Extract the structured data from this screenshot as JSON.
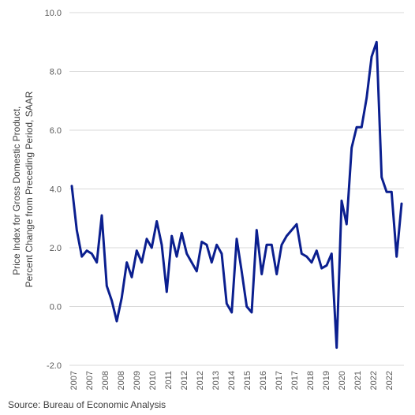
{
  "chart_data": {
    "type": "line",
    "title": "",
    "xlabel": "",
    "ylabel_lines": [
      "Price Index for Gross Domestic Product,",
      "Percent Change from Preceding Period, SAAR"
    ],
    "ylim": [
      -2.0,
      10.0
    ],
    "yticks": [
      "10.0",
      "8.0",
      "6.0",
      "4.0",
      "2.0",
      "0.0",
      "-2.0"
    ],
    "ytick_values": [
      10,
      8,
      6,
      4,
      2,
      0,
      -2
    ],
    "xtick_labels": [
      "2007",
      "2007",
      "2008",
      "2008",
      "2009",
      "2010",
      "2011",
      "2012",
      "2012",
      "2013",
      "2014",
      "2015",
      "2016",
      "2017",
      "2017",
      "2018",
      "2019",
      "2020",
      "2021",
      "2022",
      "2022"
    ],
    "grid": "horizontal",
    "legend": "none",
    "series": [
      {
        "color": "#0b1f8f",
        "x": [
          "2007 Q1",
          "2007 Q2",
          "2007 Q3",
          "2007 Q4",
          "2008 Q1",
          "2008 Q2",
          "2008 Q3",
          "2008 Q4",
          "2009 Q1",
          "2009 Q2",
          "2009 Q3",
          "2009 Q4",
          "2010 Q1",
          "2010 Q2",
          "2010 Q3",
          "2010 Q4",
          "2011 Q1",
          "2011 Q2",
          "2011 Q3",
          "2011 Q4",
          "2012 Q1",
          "2012 Q2",
          "2012 Q3",
          "2012 Q4",
          "2013 Q1",
          "2013 Q2",
          "2013 Q3",
          "2013 Q4",
          "2014 Q1",
          "2014 Q2",
          "2014 Q3",
          "2014 Q4",
          "2015 Q1",
          "2015 Q2",
          "2015 Q3",
          "2015 Q4",
          "2016 Q1",
          "2016 Q2",
          "2016 Q3",
          "2016 Q4",
          "2017 Q1",
          "2017 Q2",
          "2017 Q3",
          "2017 Q4",
          "2018 Q1",
          "2018 Q2",
          "2018 Q3",
          "2018 Q4",
          "2019 Q1",
          "2019 Q2",
          "2019 Q3",
          "2019 Q4",
          "2020 Q1",
          "2020 Q2",
          "2020 Q3",
          "2020 Q4",
          "2021 Q1",
          "2021 Q2",
          "2021 Q3",
          "2021 Q4",
          "2022 Q1",
          "2022 Q2",
          "2022 Q3",
          "2022 Q4",
          "2023 Q1",
          "2023 Q2",
          "2023 Q3"
        ],
        "values": [
          4.1,
          2.6,
          1.7,
          1.9,
          1.8,
          1.5,
          3.1,
          0.7,
          0.2,
          -0.5,
          0.3,
          1.5,
          1.0,
          1.9,
          1.5,
          2.3,
          2.0,
          2.9,
          2.1,
          0.5,
          2.4,
          1.7,
          2.5,
          1.8,
          1.5,
          1.2,
          2.2,
          2.1,
          1.5,
          2.1,
          1.8,
          0.1,
          -0.2,
          2.3,
          1.2,
          0.0,
          -0.2,
          2.6,
          1.1,
          2.1,
          2.1,
          1.1,
          2.1,
          2.4,
          2.6,
          2.8,
          1.8,
          1.7,
          1.5,
          1.9,
          1.3,
          1.4,
          1.8,
          -1.4,
          3.6,
          2.8,
          5.4,
          6.1,
          6.1,
          7.1,
          8.5,
          9.0,
          4.4,
          3.9,
          3.9,
          1.7,
          3.5
        ]
      }
    ]
  },
  "source_text": "Source: Bureau of Economic Analysis"
}
